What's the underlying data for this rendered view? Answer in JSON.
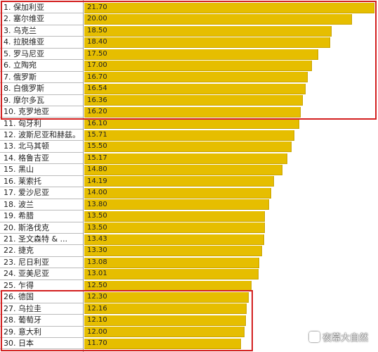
{
  "chart_data": {
    "type": "bar",
    "orientation": "horizontal",
    "categories": [
      "1. 保加利亚",
      "2. 塞尔维亚",
      "3. 乌克兰",
      "4. 拉脱维亚",
      "5. 罗马尼亚",
      "6. 立陶宛",
      "7. 俄罗斯",
      "8. 白俄罗斯",
      "9. 摩尔多瓦",
      "10. 克罗地亚",
      "11. 匈牙利",
      "12. 波斯尼亚和赫兹。",
      "13. 北马其顿",
      "14. 格鲁吉亚",
      "15. 黑山",
      "16. 莱索托",
      "17. 爱沙尼亚",
      "18. 波兰",
      "19. 希腊",
      "20. 斯洛伐克",
      "21. 圣文森特 & ...",
      "22. 捷克",
      "23. 尼日利亚",
      "24. 亚美尼亚",
      "25. 乍得",
      "26. 德国",
      "27. 乌拉圭",
      "28. 葡萄牙",
      "29. 意大利",
      "30. 日本"
    ],
    "values": [
      21.7,
      20.0,
      18.5,
      18.4,
      17.5,
      17.0,
      16.7,
      16.54,
      16.36,
      16.2,
      16.1,
      15.71,
      15.5,
      15.17,
      14.8,
      14.19,
      14.0,
      13.8,
      13.5,
      13.5,
      13.43,
      13.3,
      13.08,
      13.01,
      12.5,
      12.3,
      12.16,
      12.1,
      12.0,
      11.7
    ],
    "value_labels": [
      "21.70",
      "20.00",
      "18.50",
      "18.40",
      "17.50",
      "17.00",
      "16.70",
      "16.54",
      "16.36",
      "16.20",
      "16.10",
      "15.71",
      "15.50",
      "15.17",
      "14.80",
      "14.19",
      "14.00",
      "13.80",
      "13.50",
      "13.50",
      "13.43",
      "13.30",
      "13.08",
      "13.01",
      "12.50",
      "12.30",
      "12.16",
      "12.10",
      "12.00",
      "11.70"
    ],
    "xlim": [
      0,
      21.7
    ],
    "grid": false,
    "bar_color": "#e6be00",
    "bar_border_color": "#c9a300",
    "highlight_color": "#d32020",
    "highlight_groups": [
      {
        "from": 0,
        "to": 9
      },
      {
        "from": 25,
        "to": 29
      }
    ]
  },
  "watermark": {
    "text": "夜幕大自然"
  }
}
